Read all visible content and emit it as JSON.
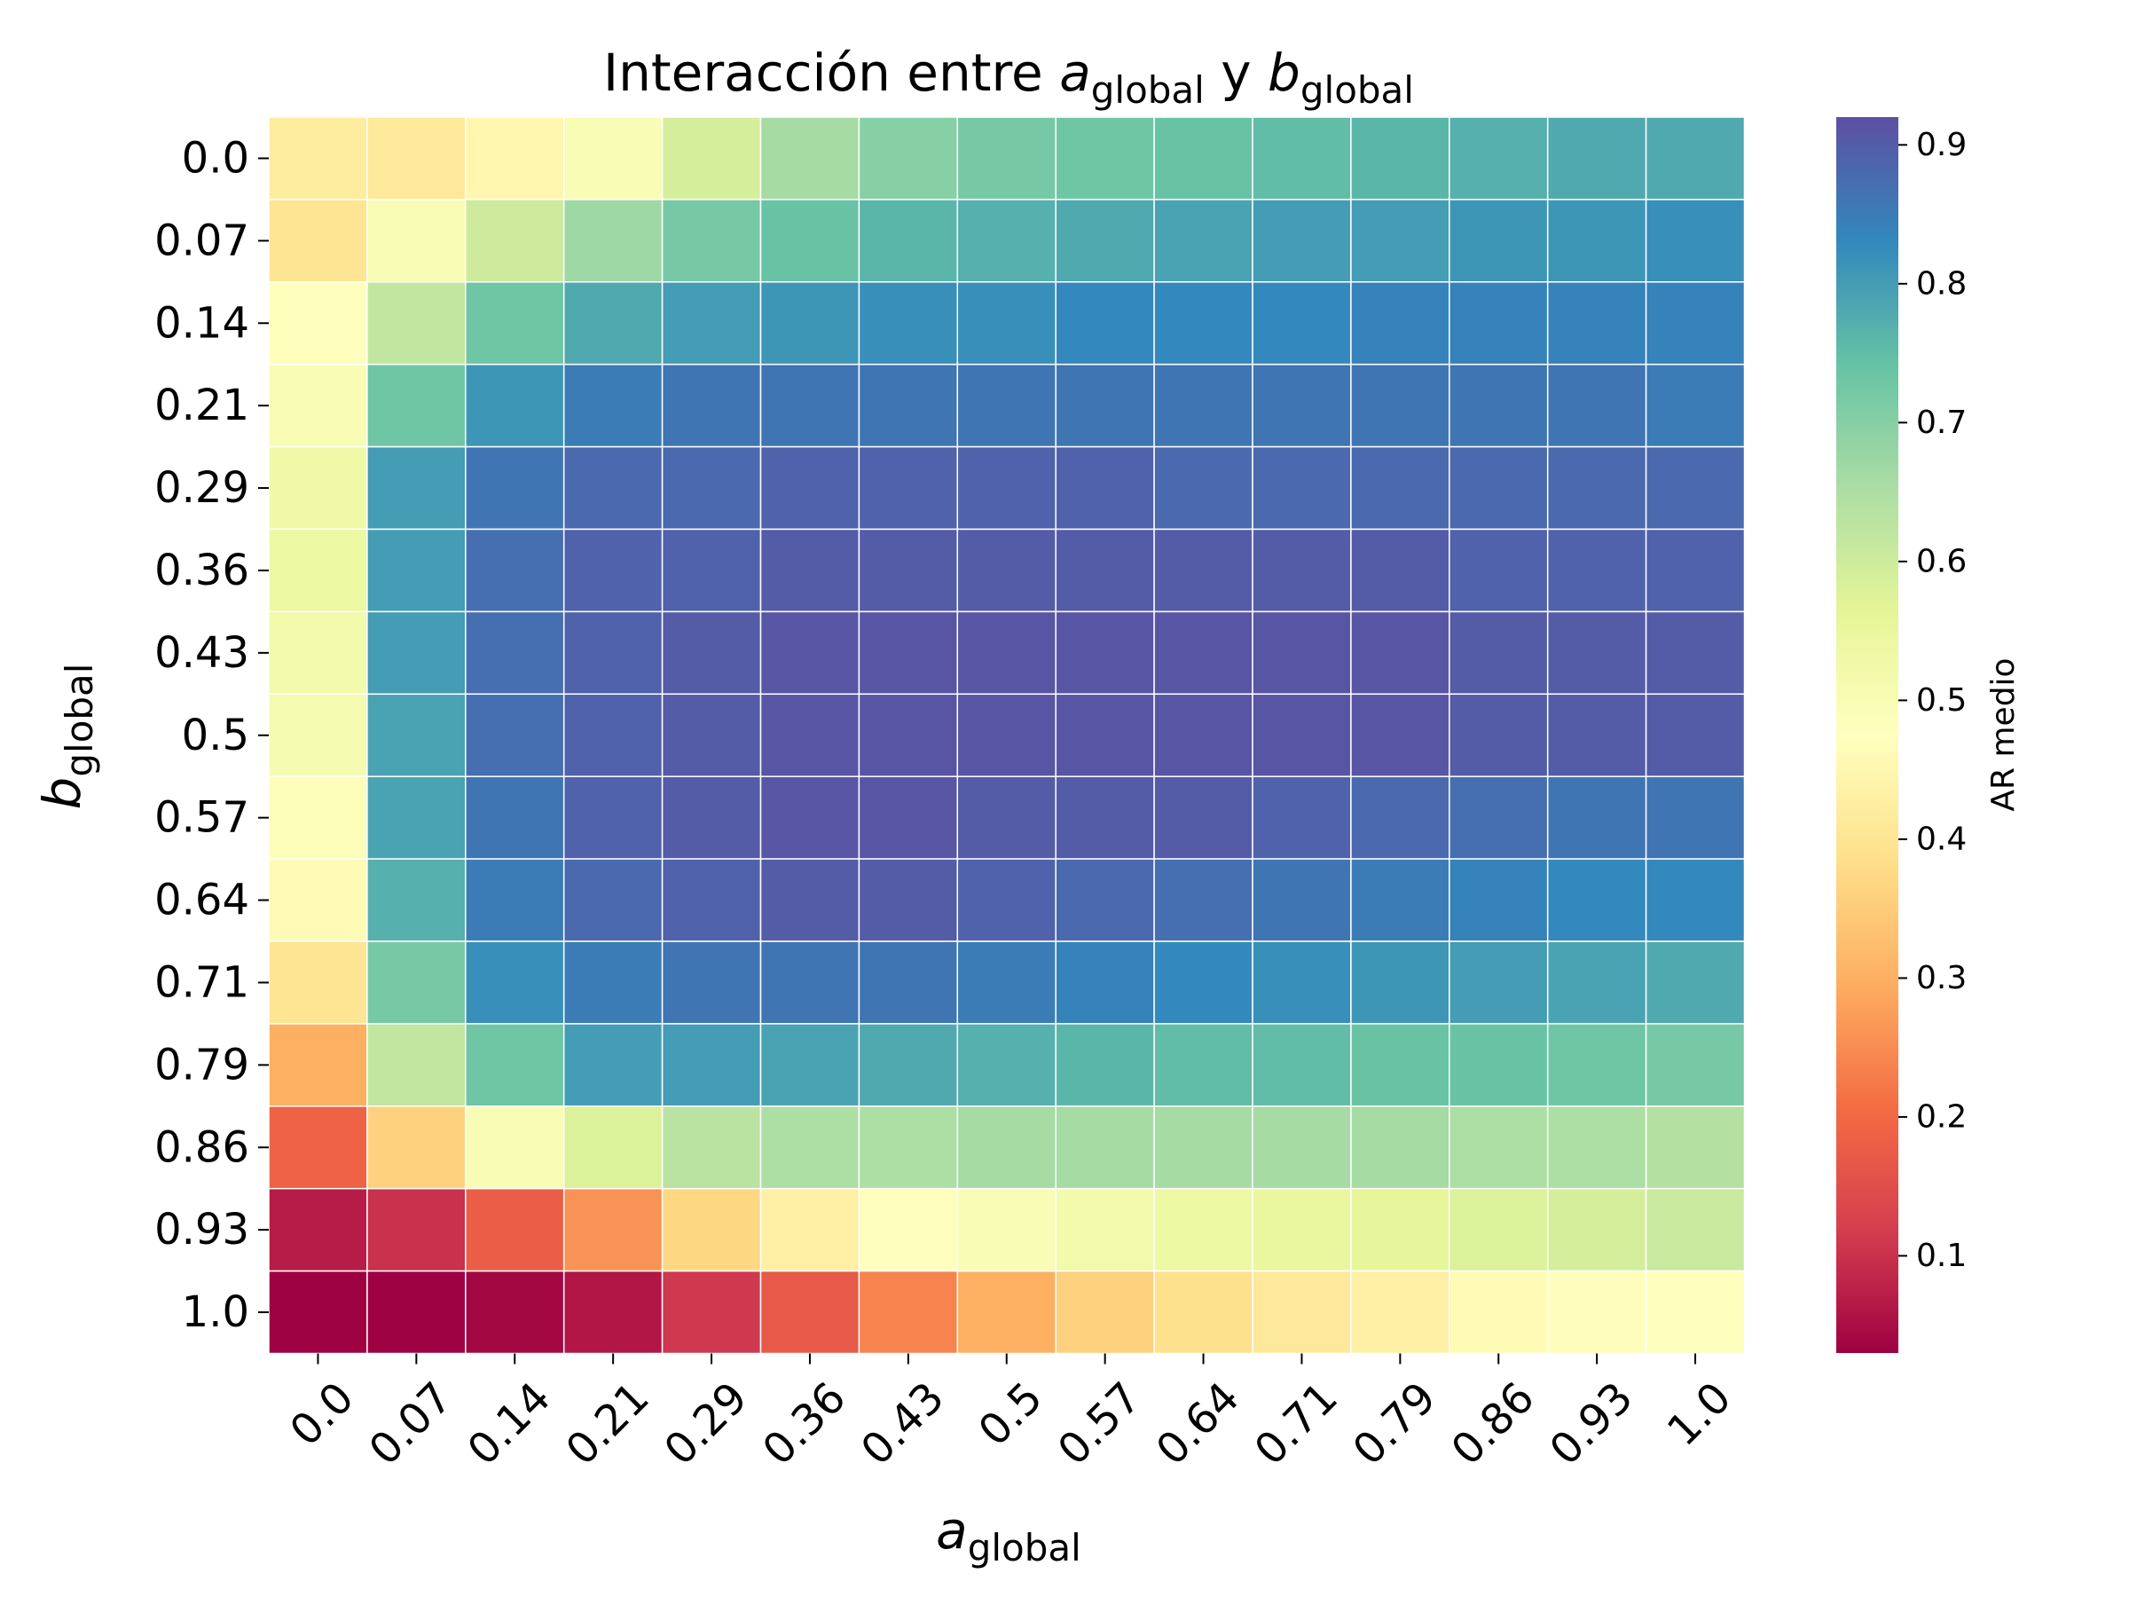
{
  "chart_data": {
    "type": "heatmap",
    "title": {
      "prefix": "Interacción entre ",
      "a_var": "a",
      "a_sub": "global",
      "middle": " y ",
      "b_var": "b",
      "b_sub": "global"
    },
    "xlabel": {
      "var": "a",
      "sub": "global"
    },
    "ylabel": {
      "var": "b",
      "sub": "global"
    },
    "colorbar_label": "AR medio",
    "colormap": "Spectral",
    "x_categories": [
      "0.0",
      "0.07",
      "0.14",
      "0.21",
      "0.29",
      "0.36",
      "0.43",
      "0.5",
      "0.57",
      "0.64",
      "0.71",
      "0.79",
      "0.86",
      "0.93",
      "1.0"
    ],
    "y_categories": [
      "0.0",
      "0.07",
      "0.14",
      "0.21",
      "0.29",
      "0.36",
      "0.43",
      "0.5",
      "0.57",
      "0.64",
      "0.71",
      "0.79",
      "0.86",
      "0.93",
      "1.0"
    ],
    "color_range": [
      0.03,
      0.92
    ],
    "colorbar_ticks": [
      "0.1",
      "0.2",
      "0.3",
      "0.4",
      "0.5",
      "0.6",
      "0.7",
      "0.8",
      "0.9"
    ],
    "values": [
      [
        0.42,
        0.41,
        0.45,
        0.5,
        0.59,
        0.66,
        0.7,
        0.72,
        0.73,
        0.74,
        0.75,
        0.76,
        0.77,
        0.78,
        0.78
      ],
      [
        0.4,
        0.5,
        0.6,
        0.67,
        0.72,
        0.74,
        0.76,
        0.77,
        0.78,
        0.79,
        0.8,
        0.8,
        0.81,
        0.81,
        0.82
      ],
      [
        0.48,
        0.62,
        0.73,
        0.78,
        0.8,
        0.81,
        0.82,
        0.82,
        0.83,
        0.83,
        0.83,
        0.84,
        0.84,
        0.84,
        0.84
      ],
      [
        0.5,
        0.73,
        0.81,
        0.85,
        0.86,
        0.86,
        0.86,
        0.86,
        0.86,
        0.86,
        0.86,
        0.86,
        0.86,
        0.86,
        0.85
      ],
      [
        0.53,
        0.8,
        0.86,
        0.88,
        0.88,
        0.89,
        0.89,
        0.89,
        0.89,
        0.88,
        0.88,
        0.88,
        0.88,
        0.88,
        0.88
      ],
      [
        0.54,
        0.8,
        0.87,
        0.89,
        0.89,
        0.9,
        0.9,
        0.9,
        0.9,
        0.9,
        0.9,
        0.9,
        0.89,
        0.89,
        0.89
      ],
      [
        0.52,
        0.8,
        0.87,
        0.89,
        0.9,
        0.91,
        0.91,
        0.91,
        0.91,
        0.91,
        0.91,
        0.91,
        0.9,
        0.9,
        0.9
      ],
      [
        0.51,
        0.79,
        0.87,
        0.89,
        0.9,
        0.91,
        0.91,
        0.91,
        0.91,
        0.91,
        0.91,
        0.91,
        0.9,
        0.9,
        0.9
      ],
      [
        0.49,
        0.79,
        0.86,
        0.89,
        0.9,
        0.91,
        0.91,
        0.9,
        0.9,
        0.9,
        0.89,
        0.88,
        0.87,
        0.86,
        0.86
      ],
      [
        0.46,
        0.77,
        0.85,
        0.88,
        0.89,
        0.9,
        0.9,
        0.89,
        0.88,
        0.87,
        0.86,
        0.85,
        0.84,
        0.83,
        0.83
      ],
      [
        0.4,
        0.72,
        0.82,
        0.85,
        0.86,
        0.86,
        0.86,
        0.85,
        0.84,
        0.83,
        0.82,
        0.81,
        0.8,
        0.79,
        0.78
      ],
      [
        0.3,
        0.62,
        0.73,
        0.8,
        0.8,
        0.79,
        0.78,
        0.77,
        0.76,
        0.75,
        0.75,
        0.74,
        0.74,
        0.73,
        0.72
      ],
      [
        0.19,
        0.36,
        0.5,
        0.58,
        0.63,
        0.65,
        0.65,
        0.66,
        0.66,
        0.66,
        0.66,
        0.66,
        0.65,
        0.65,
        0.64
      ],
      [
        0.07,
        0.1,
        0.18,
        0.26,
        0.37,
        0.43,
        0.48,
        0.5,
        0.52,
        0.54,
        0.55,
        0.56,
        0.58,
        0.59,
        0.61
      ],
      [
        0.03,
        0.03,
        0.04,
        0.06,
        0.11,
        0.17,
        0.24,
        0.3,
        0.36,
        0.39,
        0.41,
        0.43,
        0.46,
        0.47,
        0.48
      ]
    ]
  }
}
